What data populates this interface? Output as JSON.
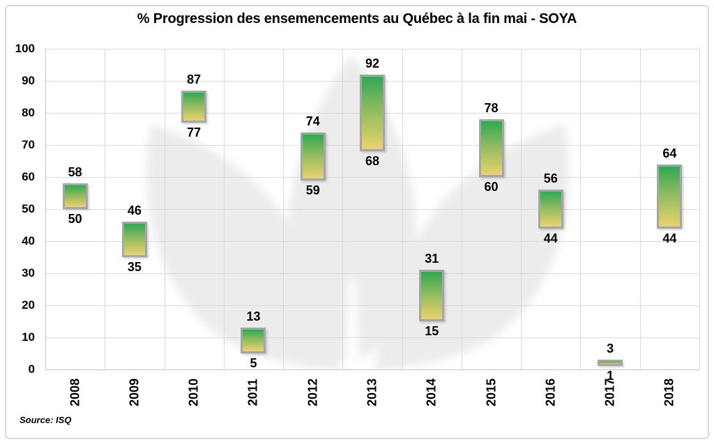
{
  "title": "% Progression des ensemencements au Québec à la fin mai - SOYA",
  "source_label": "Source: ISQ",
  "chart_data": {
    "type": "bar",
    "subtype": "floating-range-bar",
    "title": "% Progression des ensemencements au Québec à la fin mai - SOYA",
    "categories": [
      "2008",
      "2009",
      "2010",
      "2011",
      "2012",
      "2013",
      "2014",
      "2015",
      "2016",
      "2017",
      "2018"
    ],
    "series": [
      {
        "name": "low",
        "values": [
          50,
          35,
          77,
          5,
          59,
          68,
          15,
          60,
          44,
          1,
          44
        ]
      },
      {
        "name": "high",
        "values": [
          58,
          46,
          87,
          13,
          74,
          92,
          31,
          78,
          56,
          3,
          64
        ]
      }
    ],
    "ylim": [
      0,
      100
    ],
    "yticks": [
      0,
      10,
      20,
      30,
      40,
      50,
      60,
      70,
      80,
      90,
      100
    ],
    "grid": true,
    "legend": "none",
    "annotation_note": "each bar labeled with high value above and low value below",
    "colors": {
      "bar_gradient_top": "#2FA855",
      "bar_gradient_mid": "#8CBB60",
      "bar_gradient_bottom": "#EAD36C",
      "bar_border": "#A6A6A6",
      "gridline": "#D9D9D9",
      "watermark": "#ECECEC",
      "text": "#000000"
    }
  }
}
